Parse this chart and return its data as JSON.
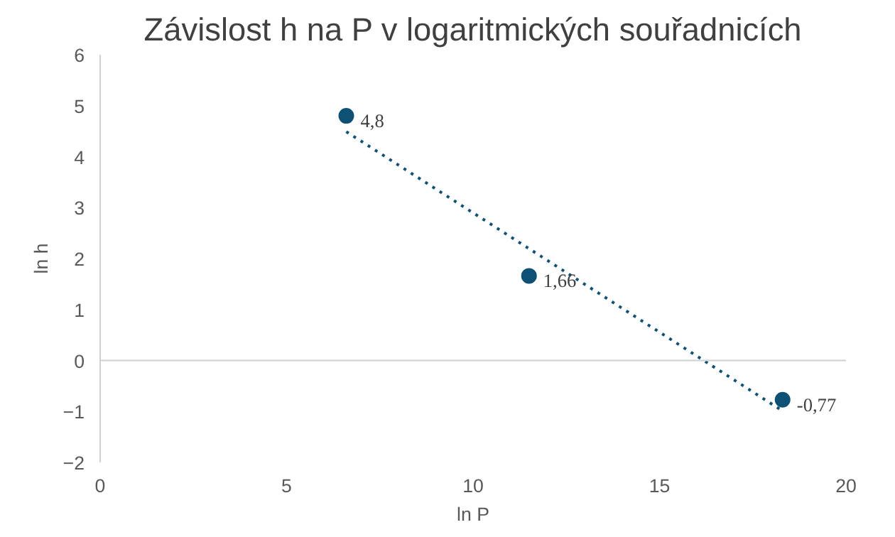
{
  "chart_data": {
    "type": "scatter",
    "title": "Závislost h na P v logaritmických souřadnicích",
    "xlabel": "ln P",
    "ylabel": "ln h",
    "xlim": [
      0,
      20
    ],
    "ylim": [
      -2,
      6
    ],
    "xticks": [
      0,
      5,
      10,
      15,
      20
    ],
    "yticks": [
      -2,
      -1,
      0,
      1,
      2,
      3,
      4,
      5,
      6
    ],
    "grid": false,
    "ref_lines": [
      {
        "axis": "y",
        "value": 0,
        "color": "#d0d0d0"
      }
    ],
    "marker": "circle",
    "series": [
      {
        "color": "#0f5174",
        "x": [
          6.6,
          11.5,
          18.3
        ],
        "values": [
          4.8,
          1.66,
          -0.77
        ],
        "value_labels": [
          "4,8",
          "1,66",
          "-0,77"
        ]
      },
      {
        "type": "line",
        "color": "#0f5174",
        "line_style": "dotted",
        "marker": "none",
        "x": [
          6.6,
          18.3
        ],
        "values": [
          4.49,
          -0.99
        ]
      }
    ]
  }
}
